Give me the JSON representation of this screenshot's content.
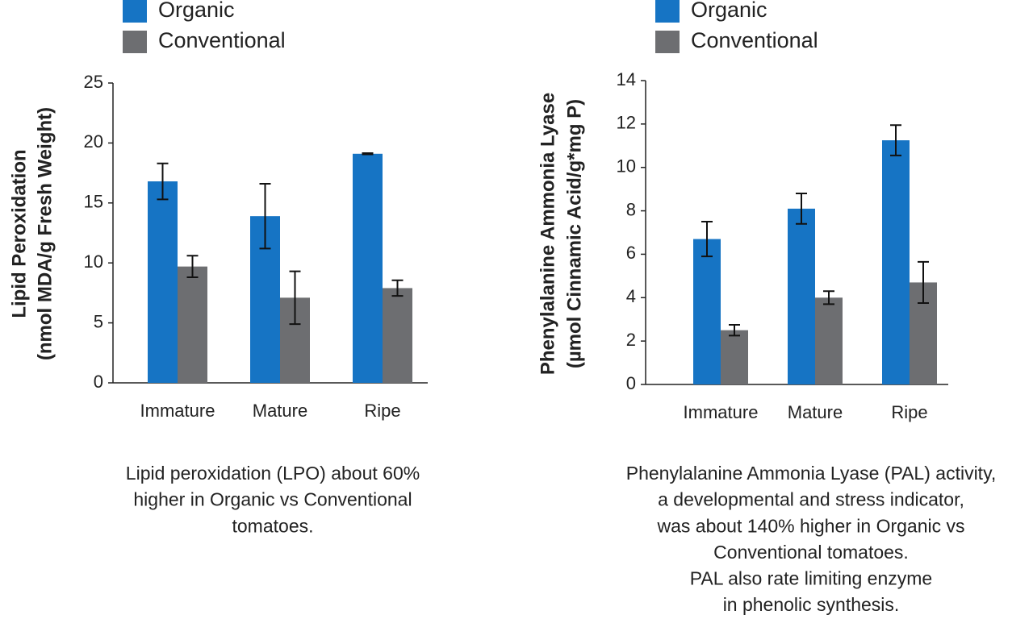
{
  "chart_data": [
    {
      "type": "bar",
      "ylabel": [
        "Lipid Peroxidation",
        "(nmol MDA/g Fresh Weight)"
      ],
      "categories": [
        "Immature",
        "Mature",
        "Ripe"
      ],
      "series": [
        {
          "name": "Organic",
          "color": "#1674c4",
          "values": [
            16.8,
            13.9,
            19.1
          ],
          "errors": [
            1.5,
            2.7,
            0.05
          ]
        },
        {
          "name": "Conventional",
          "color": "#6d6e71",
          "values": [
            9.7,
            7.1,
            7.9
          ],
          "errors": [
            0.9,
            2.2,
            0.65
          ]
        }
      ],
      "ylim": [
        0,
        25
      ],
      "yticks": [
        0,
        5,
        10,
        15,
        20,
        25
      ],
      "grid": false,
      "notes": [
        "Lipid peroxidation (LPO) about 60%",
        "higher in Organic vs Conventional",
        "tomatoes."
      ]
    },
    {
      "type": "bar",
      "ylabel": [
        "Phenylalanine Ammonia Lyase",
        "(µmol Cinnamic Acid/g*mg P)"
      ],
      "categories": [
        "Immature",
        "Mature",
        "Ripe"
      ],
      "series": [
        {
          "name": "Organic",
          "color": "#1674c4",
          "values": [
            6.7,
            8.1,
            11.25
          ],
          "errors": [
            0.8,
            0.7,
            0.7
          ]
        },
        {
          "name": "Conventional",
          "color": "#6d6e71",
          "values": [
            2.5,
            4.0,
            4.7
          ],
          "errors": [
            0.25,
            0.3,
            0.95
          ]
        }
      ],
      "ylim": [
        0,
        14
      ],
      "yticks": [
        0,
        2,
        4,
        6,
        8,
        10,
        12,
        14
      ],
      "grid": false,
      "notes": [
        "Phenylalanine Ammonia Lyase (PAL) activity,",
        "a developmental  and stress indicator,",
        "was about 140% higher in Organic vs",
        "Conventional tomatoes.",
        "PAL also rate limiting enzyme",
        "in phenolic synthesis."
      ]
    }
  ]
}
